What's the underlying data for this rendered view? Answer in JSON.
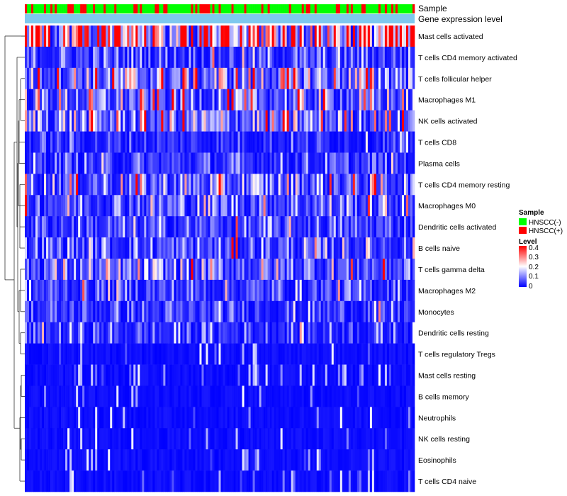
{
  "chart_data": {
    "type": "heatmap",
    "title": "",
    "annotation_tracks": [
      {
        "name": "Sample",
        "label": "Sample"
      },
      {
        "name": "Gene expression level",
        "label": "Gene expression level"
      }
    ],
    "rows": [
      "Mast cells activated",
      "T cells CD4 memory activated",
      "T cells follicular helper",
      "Macrophages M1",
      "NK cells activated",
      "T cells CD8",
      "Plasma cells",
      "T cells CD4 memory resting",
      "Macrophages M0",
      "Dendritic cells activated",
      "B cells naive",
      "T cells gamma delta",
      "Macrophages M2",
      "Monocytes",
      "Dendritic cells resting",
      "T cells regulatory  Tregs",
      "Mast cells resting",
      "B cells memory",
      "Neutrophils",
      "NK cells resting",
      "Eosinophils",
      "T cells CD4 naive"
    ],
    "row_mean_levels": [
      0.3,
      0.06,
      0.14,
      0.1,
      0.12,
      0.04,
      0.05,
      0.1,
      0.09,
      0.06,
      0.07,
      0.09,
      0.06,
      0.05,
      0.05,
      0.03,
      0.01,
      0.02,
      0.015,
      0.01,
      0.01,
      0.03
    ],
    "n_samples": 183,
    "positive_sample_fraction": 0.25,
    "gene_expression_level_color": "#7ec8ee",
    "legend": {
      "sample_title": "Sample",
      "sample_items": [
        {
          "label": "HNSCC(-)",
          "color": "#00ff00"
        },
        {
          "label": "HNSCC(+)",
          "color": "#ff0000"
        }
      ],
      "level_title": "Level",
      "level_ticks": [
        "0.4",
        "0.3",
        "0.2",
        "0.1",
        "0"
      ],
      "level_range": [
        0,
        0.4
      ],
      "color_low": "#0000ff",
      "color_mid": "#ffffff",
      "color_high": "#ff0000"
    }
  }
}
